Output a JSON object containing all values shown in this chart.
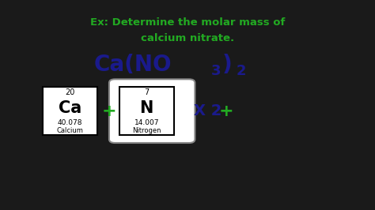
{
  "bg_color": "#ffffff",
  "outer_bg": "#1a1a1a",
  "title_line1": "Ex: Determine the molar mass of",
  "title_line2": "calcium nitrate.",
  "title_color": "#22aa22",
  "formula_color": "#1a1a8c",
  "ca_atomic_num": "20",
  "ca_symbol": "Ca",
  "ca_mass": "40.078",
  "ca_name": "Calcium",
  "n_atomic_num": "7",
  "n_symbol": "N",
  "n_mass": "14.007",
  "n_name": "Nitrogen",
  "plus_color": "#22aa22",
  "times_color": "#1a1a8c",
  "times_text": "X 2",
  "figsize": [
    4.74,
    2.66
  ],
  "dpi": 100
}
